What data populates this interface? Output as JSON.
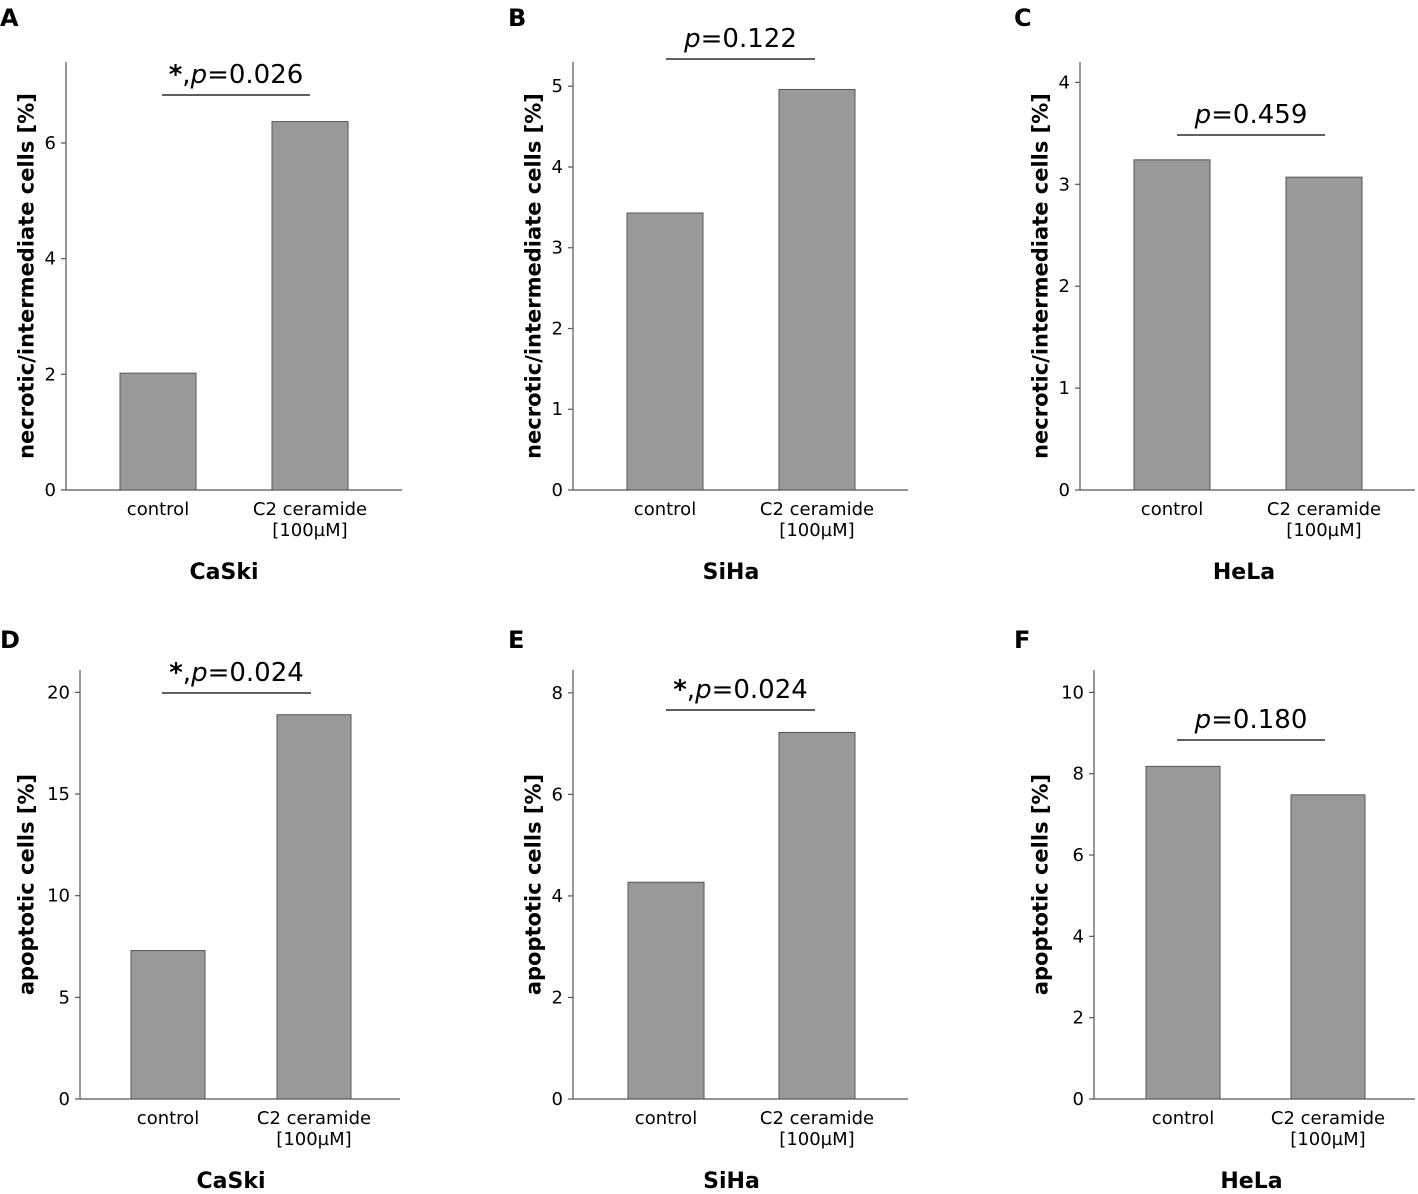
{
  "colors": {
    "bar": "#999999",
    "bar_edge": "#555555",
    "axis": "#555555",
    "text": "#000000"
  },
  "chart_data": [
    {
      "panel": "A",
      "type": "bar",
      "xlabel": "CaSki",
      "ylabel": "necrotic/intermediate cells [%]",
      "categories": [
        "control",
        [
          "C2 ceramide",
          "[100µM]"
        ]
      ],
      "values": [
        2.02,
        6.37
      ],
      "ylim": [
        0,
        7.4
      ],
      "yticks": [
        0,
        2,
        4,
        6
      ],
      "annotation": {
        "star": "*",
        "comma": ",",
        "p": "p",
        "rest": "=0.026"
      }
    },
    {
      "panel": "B",
      "type": "bar",
      "xlabel": "SiHa",
      "ylabel": "necrotic/intermediate cells [%]",
      "categories": [
        "control",
        [
          "C2 ceramide",
          "[100µM]"
        ]
      ],
      "values": [
        3.43,
        4.96
      ],
      "ylim": [
        0,
        5.3
      ],
      "yticks": [
        0,
        1,
        2,
        3,
        4,
        5
      ],
      "annotation": {
        "star": "",
        "comma": "",
        "p": "p",
        "rest": "=0.122"
      }
    },
    {
      "panel": "C",
      "type": "bar",
      "xlabel": "HeLa",
      "ylabel": "necrotic/intermediate cells [%]",
      "categories": [
        "control",
        [
          "C2 ceramide",
          "[100µM]"
        ]
      ],
      "values": [
        3.24,
        3.07
      ],
      "ylim": [
        0,
        4.2
      ],
      "yticks": [
        0,
        1,
        2,
        3,
        4
      ],
      "annotation": {
        "star": "",
        "comma": "",
        "p": "p",
        "rest": "=0.459"
      }
    },
    {
      "panel": "D",
      "type": "bar",
      "xlabel": "CaSki",
      "ylabel": "apoptotic cells [%]",
      "categories": [
        "control",
        [
          "C2 ceramide",
          "[100µM]"
        ]
      ],
      "values": [
        7.3,
        18.9
      ],
      "ylim": [
        0,
        21.1
      ],
      "yticks": [
        0,
        5,
        10,
        15,
        20
      ],
      "annotation": {
        "star": "*",
        "comma": ",",
        "p": "p",
        "rest": "=0.024"
      }
    },
    {
      "panel": "E",
      "type": "bar",
      "xlabel": "SiHa",
      "ylabel": "apoptotic cells [%]",
      "categories": [
        "control",
        [
          "C2 ceramide",
          "[100µM]"
        ]
      ],
      "values": [
        4.27,
        7.22
      ],
      "ylim": [
        0,
        8.45
      ],
      "yticks": [
        0,
        2,
        4,
        6,
        8
      ],
      "annotation": {
        "star": "*",
        "comma": ",",
        "p": "p",
        "rest": "=0.024"
      }
    },
    {
      "panel": "F",
      "type": "bar",
      "xlabel": "HeLa",
      "ylabel": "apoptotic cells [%]",
      "categories": [
        "control",
        [
          "C2 ceramide",
          "[100µM]"
        ]
      ],
      "values": [
        8.18,
        7.48
      ],
      "ylim": [
        0,
        10.55
      ],
      "yticks": [
        0,
        2,
        4,
        6,
        8,
        10
      ],
      "annotation": {
        "star": "",
        "comma": "",
        "p": "p",
        "rest": "=0.180"
      }
    }
  ]
}
